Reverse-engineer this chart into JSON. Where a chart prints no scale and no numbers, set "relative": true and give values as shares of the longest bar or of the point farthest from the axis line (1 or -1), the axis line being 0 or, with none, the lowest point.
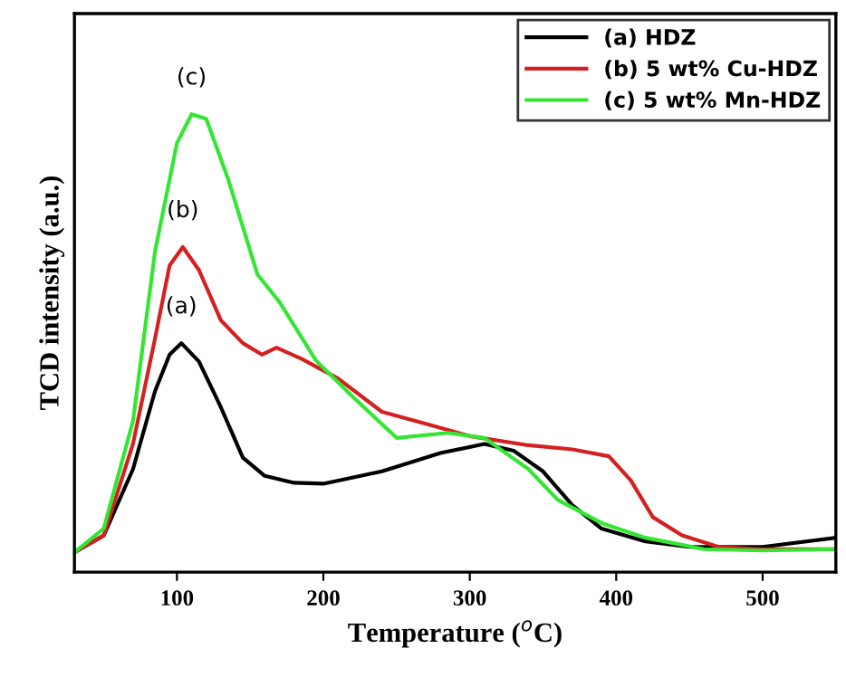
{
  "chart_data": {
    "type": "line",
    "relative": true,
    "xlabel": "Temperature ($^{o}$C)",
    "ylabel": "TCD intensity (a.u.)",
    "xlim": [
      30,
      550
    ],
    "xticks": [
      100,
      200,
      300,
      400,
      500
    ],
    "grid": false,
    "legend": "top right",
    "marker": "none",
    "line_style": "solid",
    "annotations": [
      {
        "text": "(a)",
        "x": 103,
        "y": 0.5
      },
      {
        "text": "(b)",
        "x": 104,
        "y": 0.71
      },
      {
        "text": "(c)",
        "x": 110,
        "y": 1
      }
    ],
    "series": [
      {
        "name": "(a) HDZ",
        "color": "#000000",
        "x": [
          30,
          50,
          70,
          85,
          95,
          103,
          115,
          130,
          145,
          160,
          180,
          200,
          240,
          280,
          310,
          330,
          350,
          370,
          390,
          420,
          450,
          500,
          550
        ],
        "values": [
          0.043,
          0.08,
          0.225,
          0.395,
          0.475,
          0.5,
          0.46,
          0.36,
          0.25,
          0.21,
          0.195,
          0.193,
          0.22,
          0.26,
          0.28,
          0.265,
          0.22,
          0.146,
          0.095,
          0.067,
          0.055,
          0.055,
          0.075
        ]
      },
      {
        "name": "(b) 5 wt% Cu-HDZ",
        "color": "#d42020",
        "x": [
          30,
          50,
          70,
          85,
          95,
          104,
          115,
          130,
          145,
          158,
          168,
          185,
          210,
          240,
          270,
          300,
          340,
          370,
          395,
          410,
          425,
          445,
          470,
          500,
          550
        ],
        "values": [
          0.043,
          0.08,
          0.28,
          0.51,
          0.67,
          0.71,
          0.66,
          0.55,
          0.5,
          0.475,
          0.49,
          0.466,
          0.423,
          0.35,
          0.324,
          0.297,
          0.277,
          0.268,
          0.253,
          0.2,
          0.12,
          0.08,
          0.055,
          0.05,
          0.05
        ]
      },
      {
        "name": "(c) 5 wt% Mn-HDZ",
        "color": "#33e633",
        "x": [
          30,
          50,
          70,
          85,
          100,
          110,
          120,
          135,
          155,
          170,
          195,
          220,
          250,
          285,
          310,
          340,
          360,
          390,
          420,
          460,
          500,
          550
        ],
        "values": [
          0.043,
          0.095,
          0.33,
          0.7,
          0.937,
          1,
          0.99,
          0.858,
          0.65,
          0.59,
          0.462,
          0.383,
          0.293,
          0.304,
          0.293,
          0.225,
          0.158,
          0.107,
          0.075,
          0.05,
          0.047,
          0.05
        ]
      }
    ]
  }
}
